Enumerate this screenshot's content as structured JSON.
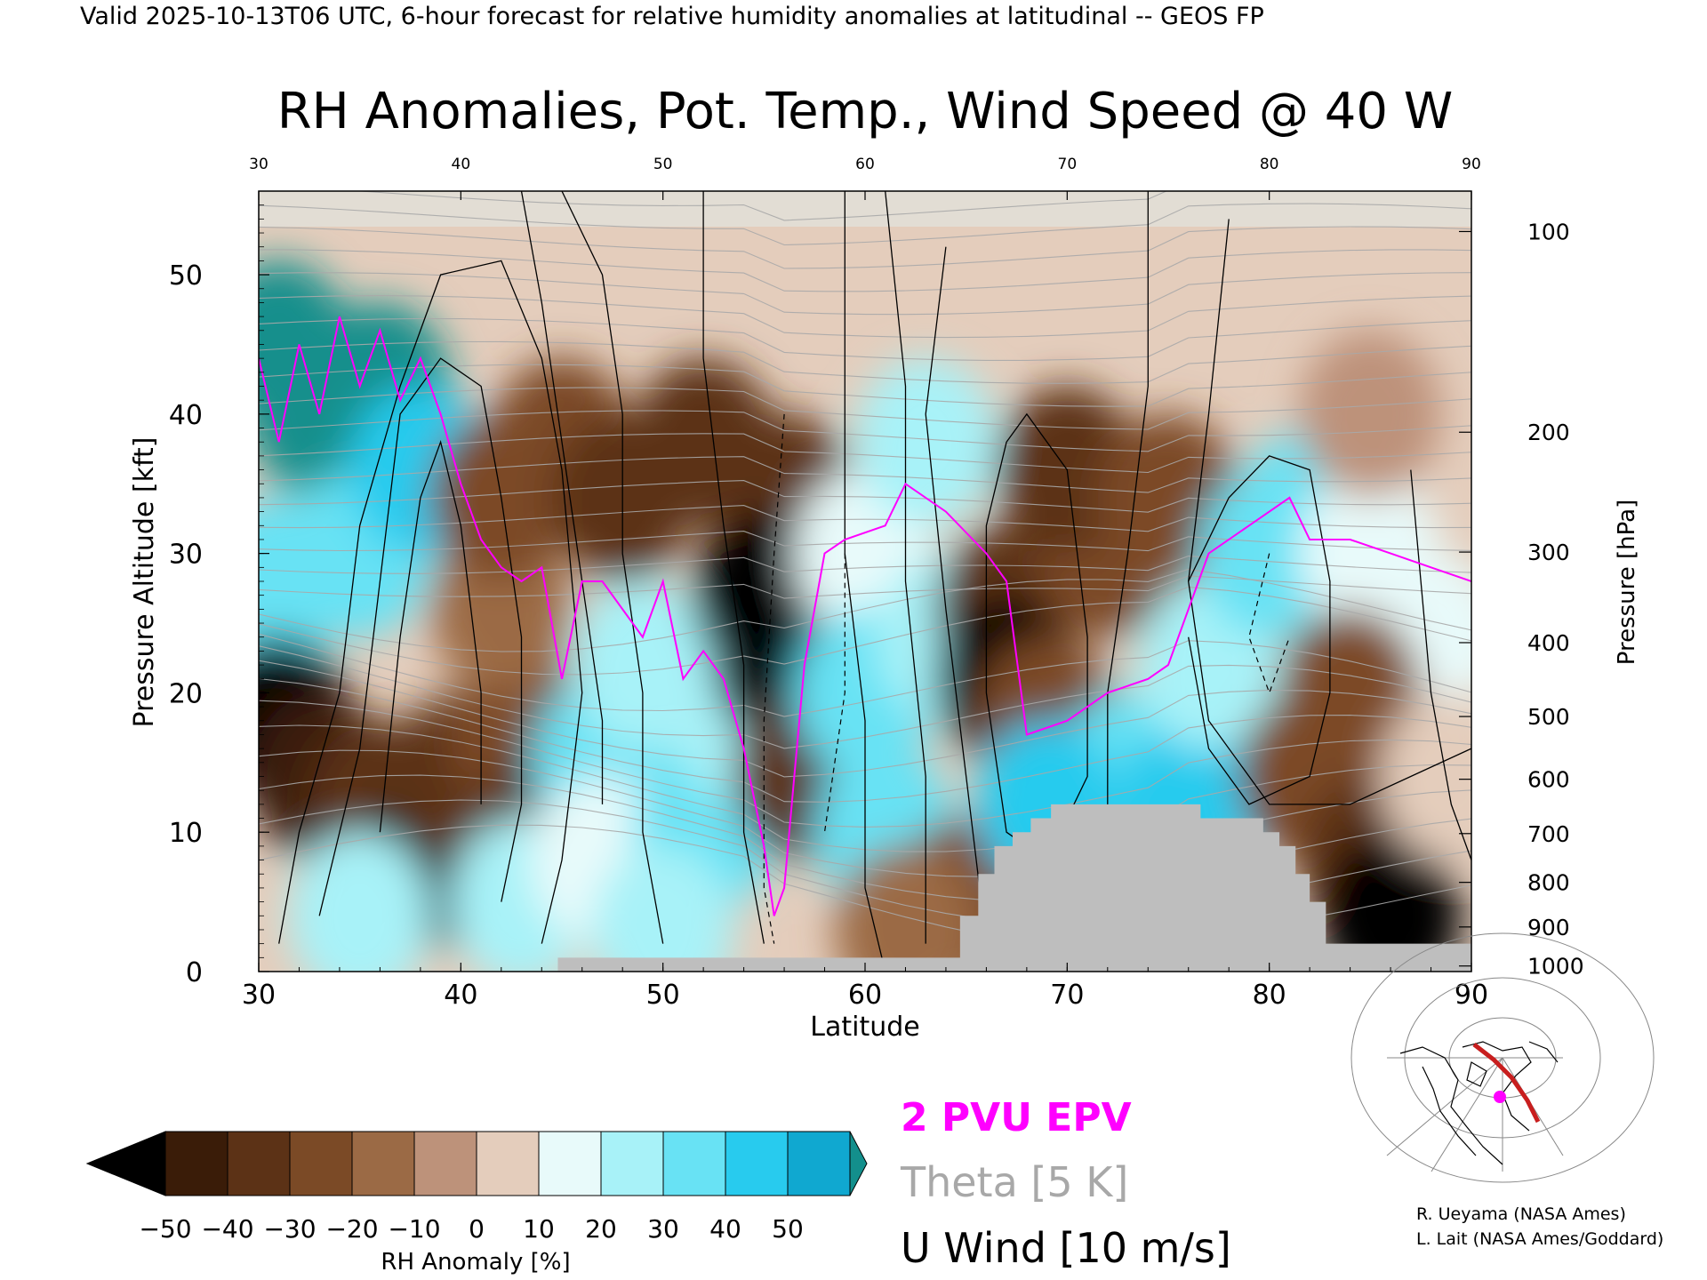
{
  "header": {
    "valid_line": "Valid 2025-10-13T06 UTC, 6-hour forecast for relative humidity anomalies at latitudinal -- GEOS FP"
  },
  "chart_data": {
    "type": "heatmap",
    "title": "RH Anomalies, Pot. Temp., Wind Speed @ 40 W",
    "xlabel": "Latitude",
    "ylabel": "Pressure Altitude [kft]",
    "y2label": "Pressure [hPa]",
    "xlim": [
      30,
      90
    ],
    "ylim": [
      0,
      56
    ],
    "x_ticks": [
      30,
      40,
      50,
      60,
      70,
      80,
      90
    ],
    "x_ticks_top": [
      30,
      40,
      50,
      60,
      70,
      80,
      90
    ],
    "y_ticks": [
      0,
      10,
      20,
      30,
      40,
      50
    ],
    "y2_ticks": [
      {
        "label": "100",
        "kft": 53.1
      },
      {
        "label": "200",
        "kft": 38.7
      },
      {
        "label": "300",
        "kft": 30.1
      },
      {
        "label": "400",
        "kft": 23.6
      },
      {
        "label": "500",
        "kft": 18.3
      },
      {
        "label": "600",
        "kft": 13.8
      },
      {
        "label": "700",
        "kft": 9.9
      },
      {
        "label": "800",
        "kft": 6.4
      },
      {
        "label": "900",
        "kft": 3.2
      },
      {
        "label": "1000",
        "kft": 0.4
      }
    ],
    "colorbar": {
      "label": "RH Anomaly [%]",
      "ticks": [
        "−50",
        "−40",
        "−30",
        "−20",
        "−10",
        "0",
        "10",
        "20",
        "30",
        "40",
        "50"
      ],
      "colors": [
        "#3a1c08",
        "#5c3216",
        "#7b4a26",
        "#9b6a45",
        "#bd927a",
        "#e4cdbc",
        "#e8fafa",
        "#a8f2f8",
        "#68e2f4",
        "#28cbee",
        "#10a8d0"
      ],
      "under_color": "#000000",
      "over_color": "#138f8c"
    },
    "rh_field": [
      {
        "x": 31,
        "y": 45,
        "v": 55
      },
      {
        "x": 33,
        "y": 40,
        "v": 55
      },
      {
        "x": 36,
        "y": 42,
        "v": 55
      },
      {
        "x": 31,
        "y": 28,
        "v": 30
      },
      {
        "x": 35,
        "y": 30,
        "v": 30
      },
      {
        "x": 38,
        "y": 36,
        "v": 45
      },
      {
        "x": 31,
        "y": 18,
        "v": -55
      },
      {
        "x": 33,
        "y": 14,
        "v": -45
      },
      {
        "x": 36,
        "y": 12,
        "v": -40
      },
      {
        "x": 39,
        "y": 8,
        "v": -55
      },
      {
        "x": 40,
        "y": 14,
        "v": -40
      },
      {
        "x": 43,
        "y": 17,
        "v": -30
      },
      {
        "x": 44,
        "y": 10,
        "v": -40
      },
      {
        "x": 42,
        "y": 26,
        "v": -20
      },
      {
        "x": 42,
        "y": 34,
        "v": -30
      },
      {
        "x": 45,
        "y": 38,
        "v": -30
      },
      {
        "x": 35,
        "y": 4,
        "v": 20
      },
      {
        "x": 43,
        "y": 5,
        "v": 20
      },
      {
        "x": 47,
        "y": 15,
        "v": 30
      },
      {
        "x": 49,
        "y": 22,
        "v": 20
      },
      {
        "x": 47,
        "y": 8,
        "v": 15
      },
      {
        "x": 52,
        "y": 10,
        "v": 30
      },
      {
        "x": 54,
        "y": 18,
        "v": 25
      },
      {
        "x": 50,
        "y": 3,
        "v": 25
      },
      {
        "x": 48,
        "y": 34,
        "v": -35
      },
      {
        "x": 52,
        "y": 38,
        "v": -35
      },
      {
        "x": 56,
        "y": 34,
        "v": -35
      },
      {
        "x": 55,
        "y": 27,
        "v": -55
      },
      {
        "x": 56,
        "y": 22,
        "v": -50
      },
      {
        "x": 57,
        "y": 14,
        "v": -35
      },
      {
        "x": 60,
        "y": 30,
        "v": 15
      },
      {
        "x": 60,
        "y": 20,
        "v": 30
      },
      {
        "x": 61,
        "y": 10,
        "v": 35
      },
      {
        "x": 63,
        "y": 38,
        "v": 20
      },
      {
        "x": 64,
        "y": 24,
        "v": 25
      },
      {
        "x": 65,
        "y": 5,
        "v": -25
      },
      {
        "x": 62,
        "y": 3,
        "v": -15
      },
      {
        "x": 67,
        "y": 26,
        "v": -35
      },
      {
        "x": 67,
        "y": 21,
        "v": -55
      },
      {
        "x": 69,
        "y": 18,
        "v": -30
      },
      {
        "x": 72,
        "y": 30,
        "v": -30
      },
      {
        "x": 70,
        "y": 36,
        "v": -35
      },
      {
        "x": 75,
        "y": 34,
        "v": -30
      },
      {
        "x": 73,
        "y": 14,
        "v": 35
      },
      {
        "x": 69,
        "y": 12,
        "v": 40
      },
      {
        "x": 76,
        "y": 12,
        "v": 40
      },
      {
        "x": 77,
        "y": 22,
        "v": 25
      },
      {
        "x": 80,
        "y": 30,
        "v": 35
      },
      {
        "x": 82,
        "y": 33,
        "v": 30
      },
      {
        "x": 85,
        "y": 30,
        "v": 15
      },
      {
        "x": 88,
        "y": 24,
        "v": 15
      },
      {
        "x": 82,
        "y": 14,
        "v": -30
      },
      {
        "x": 85,
        "y": 8,
        "v": -40
      },
      {
        "x": 86,
        "y": 4,
        "v": -55
      },
      {
        "x": 84,
        "y": 20,
        "v": -25
      },
      {
        "x": 89,
        "y": 14,
        "v": 5
      },
      {
        "x": 85,
        "y": 40,
        "v": -10
      }
    ],
    "terrain": [
      [
        44.8,
        1
      ],
      [
        60.5,
        1
      ],
      [
        64.7,
        4
      ],
      [
        65.6,
        7
      ],
      [
        66.4,
        9
      ],
      [
        67.3,
        10
      ],
      [
        68.2,
        11
      ],
      [
        69.2,
        12
      ],
      [
        75.9,
        12
      ],
      [
        76.6,
        11
      ],
      [
        79.7,
        10
      ],
      [
        80.5,
        9
      ],
      [
        81.3,
        7
      ],
      [
        82.0,
        5
      ],
      [
        82.8,
        2
      ],
      [
        90,
        0
      ]
    ],
    "epv_2pvu": [
      [
        30,
        44
      ],
      [
        31,
        38
      ],
      [
        32,
        45
      ],
      [
        33,
        40
      ],
      [
        34,
        47
      ],
      [
        35,
        42
      ],
      [
        36,
        46
      ],
      [
        37,
        41
      ],
      [
        38,
        44
      ],
      [
        39,
        40
      ],
      [
        40,
        35
      ],
      [
        41,
        31
      ],
      [
        42,
        29
      ],
      [
        43,
        28
      ],
      [
        44,
        29
      ],
      [
        45,
        21
      ],
      [
        46,
        28
      ],
      [
        47,
        28
      ],
      [
        49,
        24
      ],
      [
        50,
        28
      ],
      [
        51,
        21
      ],
      [
        52,
        23
      ],
      [
        53,
        21
      ],
      [
        54,
        16
      ],
      [
        55,
        9
      ],
      [
        55.5,
        4
      ],
      [
        56,
        6
      ],
      [
        56.5,
        14
      ],
      [
        57,
        22
      ],
      [
        58,
        30
      ],
      [
        59,
        31
      ],
      [
        61,
        32
      ],
      [
        62,
        35
      ],
      [
        64,
        33
      ],
      [
        66,
        30
      ],
      [
        67,
        28
      ],
      [
        68,
        17
      ],
      [
        70,
        18
      ],
      [
        72,
        20
      ],
      [
        74,
        21
      ],
      [
        75,
        22
      ],
      [
        77,
        30
      ],
      [
        79,
        32
      ],
      [
        81,
        34
      ],
      [
        82,
        31
      ],
      [
        84,
        31
      ],
      [
        86,
        30
      ],
      [
        88,
        29
      ],
      [
        90,
        28
      ]
    ],
    "legend": {
      "epv": "2 PVU EPV",
      "theta": "Theta [5 K]",
      "u": "U Wind [10 m/s]"
    },
    "colors": {
      "epv": "#ff00ff",
      "theta": "#a8a8a8",
      "u_wind": "#000000",
      "terrain": "#bebebe",
      "model_top": "#e2dfd8"
    }
  },
  "credits": {
    "line1": "R. Ueyama (NASA Ames)",
    "line2": "L. Lait (NASA Ames/Goddard)"
  }
}
